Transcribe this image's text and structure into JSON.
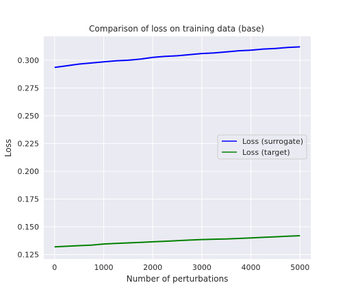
{
  "chart_data": {
    "type": "line",
    "title": "Comparison of loss on training data (base)",
    "xlabel": "Number of perturbations",
    "ylabel": "Loss",
    "xlim": [
      -220,
      5220
    ],
    "ylim": [
      0.121,
      0.3215
    ],
    "xticks": [
      0,
      1000,
      2000,
      3000,
      4000,
      5000
    ],
    "xtick_labels": [
      "0",
      "1000",
      "2000",
      "3000",
      "4000",
      "5000"
    ],
    "yticks": [
      0.125,
      0.15,
      0.175,
      0.2,
      0.225,
      0.25,
      0.275,
      0.3
    ],
    "ytick_labels": [
      "0.125",
      "0.150",
      "0.175",
      "0.200",
      "0.225",
      "0.250",
      "0.275",
      "0.300"
    ],
    "grid": true,
    "legend_position": "center-right",
    "series": [
      {
        "name": "Loss (surrogate)",
        "color": "#0000ff",
        "x": [
          0,
          250,
          500,
          750,
          1000,
          1250,
          1500,
          1750,
          2000,
          2250,
          2500,
          2750,
          3000,
          3250,
          3500,
          3750,
          4000,
          4250,
          4500,
          4750,
          5000
        ],
        "values": [
          0.2935,
          0.295,
          0.2965,
          0.2975,
          0.2985,
          0.2995,
          0.3,
          0.301,
          0.3025,
          0.3035,
          0.304,
          0.305,
          0.306,
          0.3065,
          0.3075,
          0.3085,
          0.309,
          0.31,
          0.3105,
          0.3115,
          0.312
        ]
      },
      {
        "name": "Loss (target)",
        "color": "#008000",
        "x": [
          0,
          250,
          500,
          750,
          1000,
          1250,
          1500,
          1750,
          2000,
          2250,
          2500,
          2750,
          3000,
          3250,
          3500,
          3750,
          4000,
          4250,
          4500,
          4750,
          5000
        ],
        "values": [
          0.132,
          0.1325,
          0.133,
          0.1335,
          0.1345,
          0.135,
          0.1355,
          0.136,
          0.1365,
          0.137,
          0.1375,
          0.138,
          0.1385,
          0.1388,
          0.139,
          0.1395,
          0.14,
          0.1405,
          0.141,
          0.1415,
          0.142
        ]
      }
    ]
  }
}
